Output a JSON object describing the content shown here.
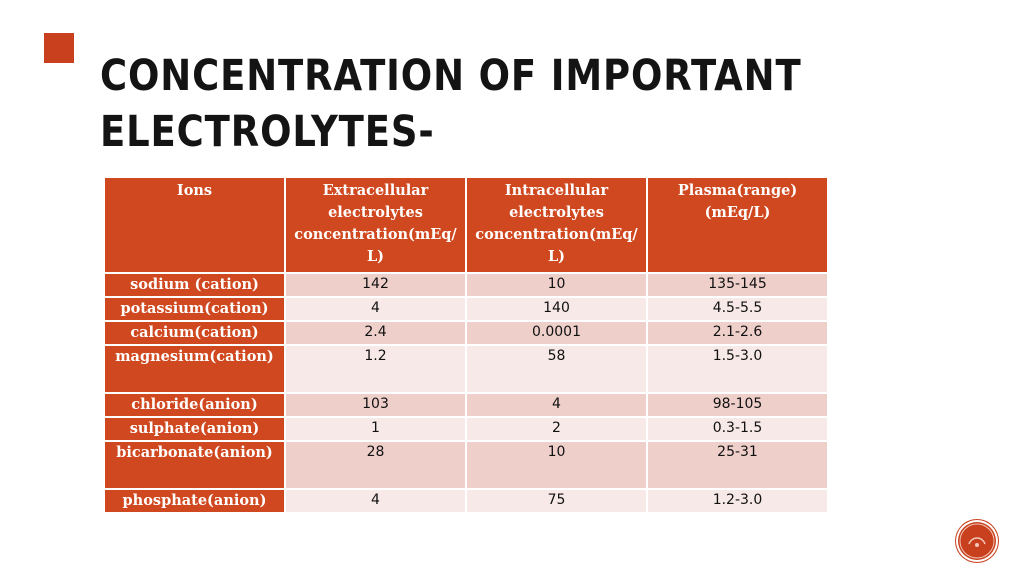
{
  "title": "Concentration of important electrolytes-",
  "colors": {
    "accent": "#c8401d",
    "header_bg": "#d0481f",
    "row_dark": "#eecfca",
    "row_light": "#f7e9e7"
  },
  "table": {
    "headers": [
      "Ions",
      "Extracellular electrolytes concentration(mEq/ L)",
      "Intracellular electrolytes concentration(mEq/ L)",
      "Plasma(range) (mEq/L)"
    ],
    "rows": [
      {
        "ion": "sodium (cation)",
        "extracellular": "142",
        "intracellular": "10",
        "plasma": "135-145"
      },
      {
        "ion": "potassium(cation)",
        "extracellular": "4",
        "intracellular": "140",
        "plasma": "4.5-5.5"
      },
      {
        "ion": "calcium(cation)",
        "extracellular": "2.4",
        "intracellular": "0.0001",
        "plasma": "2.1-2.6"
      },
      {
        "ion": "magnesium(cation)",
        "extracellular": "1.2",
        "intracellular": "58",
        "plasma": "1.5-3.0"
      },
      {
        "ion": "chloride(anion)",
        "extracellular": "103",
        "intracellular": "4",
        "plasma": "98-105"
      },
      {
        "ion": "sulphate(anion)",
        "extracellular": "1",
        "intracellular": "2",
        "plasma": "0.3-1.5"
      },
      {
        "ion": "bicarbonate(anion)",
        "extracellular": "28",
        "intracellular": "10",
        "plasma": "25-31"
      },
      {
        "ion": "phosphate(anion)",
        "extracellular": "4",
        "intracellular": "75",
        "plasma": "1.2-3.0"
      }
    ]
  },
  "logo": {
    "icon": "presentation-logo-icon"
  }
}
